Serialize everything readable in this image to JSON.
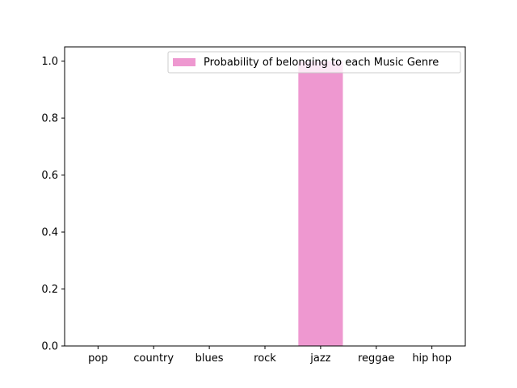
{
  "chart_data": {
    "type": "bar",
    "title": "",
    "xlabel": "",
    "ylabel": "",
    "categories": [
      "pop",
      "country",
      "blues",
      "rock",
      "jazz",
      "reggae",
      "hip hop"
    ],
    "series": [
      {
        "name": "Probability of belonging to each Music Genre",
        "values": [
          0,
          0,
          0,
          0,
          1.0,
          0,
          0
        ],
        "color": "#ee98d0"
      }
    ],
    "ylim": [
      0,
      1.05
    ],
    "yticks": [
      0.0,
      0.2,
      0.4,
      0.6,
      0.8,
      1.0
    ],
    "ytick_labels": [
      "0.0",
      "0.2",
      "0.4",
      "0.6",
      "0.8",
      "1.0"
    ],
    "legend": {
      "position": "top-right",
      "label": "Probability of belonging to each Music Genre"
    },
    "grid": false
  }
}
